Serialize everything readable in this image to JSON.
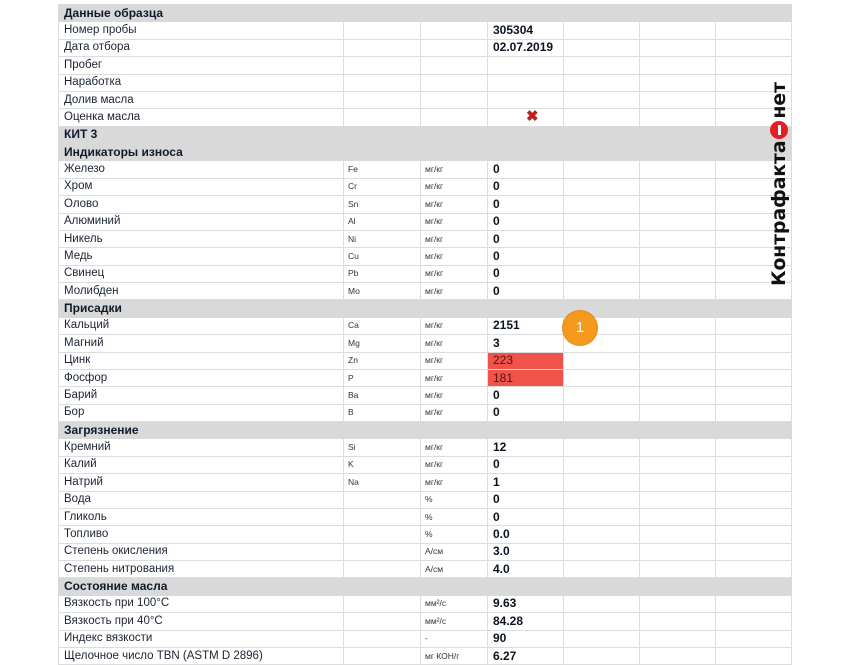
{
  "table": {
    "rows": [
      {
        "type": "section",
        "label": "Данные образца"
      },
      {
        "type": "data",
        "label": "Номер пробы",
        "symbol": "",
        "unit": "",
        "value": "305304"
      },
      {
        "type": "data",
        "label": "Дата отбора",
        "symbol": "",
        "unit": "",
        "value": "02.07.2019"
      },
      {
        "type": "data",
        "label": "Пробег",
        "symbol": "",
        "unit": "",
        "value": ""
      },
      {
        "type": "data",
        "label": "Наработка",
        "symbol": "",
        "unit": "",
        "value": ""
      },
      {
        "type": "data",
        "label": "Долив масла",
        "symbol": "",
        "unit": "",
        "value": ""
      },
      {
        "type": "data",
        "label": "Оценка масла",
        "symbol": "",
        "unit": "",
        "value": "",
        "icon": "red-cross-icon"
      },
      {
        "type": "section",
        "label": "КИТ 3"
      },
      {
        "type": "section",
        "label": "Индикаторы износа"
      },
      {
        "type": "data",
        "label": "Железо",
        "symbol": "Fe",
        "unit": "мг/кг",
        "value": "0"
      },
      {
        "type": "data",
        "label": "Хром",
        "symbol": "Cr",
        "unit": "мг/кг",
        "value": "0"
      },
      {
        "type": "data",
        "label": "Олово",
        "symbol": "Sn",
        "unit": "мг/кг",
        "value": "0"
      },
      {
        "type": "data",
        "label": "Алюминий",
        "symbol": "Al",
        "unit": "мг/кг",
        "value": "0"
      },
      {
        "type": "data",
        "label": "Никель",
        "symbol": "Ni",
        "unit": "мг/кг",
        "value": "0"
      },
      {
        "type": "data",
        "label": "Медь",
        "symbol": "Cu",
        "unit": "мг/кг",
        "value": "0"
      },
      {
        "type": "data",
        "label": "Свинец",
        "symbol": "Pb",
        "unit": "мг/кг",
        "value": "0"
      },
      {
        "type": "data",
        "label": "Молибден",
        "symbol": "Mo",
        "unit": "мг/кг",
        "value": "0"
      },
      {
        "type": "section",
        "label": "Присадки"
      },
      {
        "type": "data",
        "label": "Кальций",
        "symbol": "Ca",
        "unit": "мг/кг",
        "value": "2151"
      },
      {
        "type": "data",
        "label": "Магний",
        "symbol": "Mg",
        "unit": "мг/кг",
        "value": "3"
      },
      {
        "type": "data",
        "label": "Цинк",
        "symbol": "Zn",
        "unit": "мг/кг",
        "value": "223",
        "highlight": true
      },
      {
        "type": "data",
        "label": "Фосфор",
        "symbol": "P",
        "unit": "мг/кг",
        "value": "181",
        "highlight": true
      },
      {
        "type": "data",
        "label": "Барий",
        "symbol": "Ba",
        "unit": "мг/кг",
        "value": "0"
      },
      {
        "type": "data",
        "label": "Бор",
        "symbol": "B",
        "unit": "мг/кг",
        "value": "0"
      },
      {
        "type": "section",
        "label": "Загрязнение"
      },
      {
        "type": "data",
        "label": "Кремний",
        "symbol": "Si",
        "unit": "мг/кг",
        "value": "12"
      },
      {
        "type": "data",
        "label": "Калий",
        "symbol": "K",
        "unit": "мг/кг",
        "value": "0"
      },
      {
        "type": "data",
        "label": "Натрий",
        "symbol": "Na",
        "unit": "мг/кг",
        "value": "1"
      },
      {
        "type": "data",
        "label": "Вода",
        "symbol": "",
        "unit": "%",
        "value": "0"
      },
      {
        "type": "data",
        "label": "Гликоль",
        "symbol": "",
        "unit": "%",
        "value": "0"
      },
      {
        "type": "data",
        "label": "Топливо",
        "symbol": "",
        "unit": "%",
        "value": "0.0"
      },
      {
        "type": "data",
        "label": "Степень окисления",
        "symbol": "",
        "unit": "A/см",
        "value": "3.0"
      },
      {
        "type": "data",
        "label": "Степень нитрования",
        "symbol": "",
        "unit": "A/см",
        "value": "4.0"
      },
      {
        "type": "section",
        "label": "Состояние масла"
      },
      {
        "type": "data",
        "label": "Вязкость при 100°C",
        "symbol": "",
        "unit": "мм²/с",
        "value": "9.63"
      },
      {
        "type": "data",
        "label": "Вязкость при 40°C",
        "symbol": "",
        "unit": "мм²/с",
        "value": "84.28"
      },
      {
        "type": "data",
        "label": "Индекс вязкости",
        "symbol": "",
        "unit": "-",
        "value": "90"
      },
      {
        "type": "data",
        "label": "Щелочное число TBN (ASTM D 2896)",
        "symbol": "",
        "unit": "мг КОН/г",
        "value": "6.27"
      }
    ]
  },
  "callout": {
    "number": "1",
    "color": "#f39a1e"
  },
  "highlight_color": "#f0534a",
  "watermark": {
    "left": "Контрафакта",
    "right": "нет",
    "dot_color": "#e31e24"
  }
}
